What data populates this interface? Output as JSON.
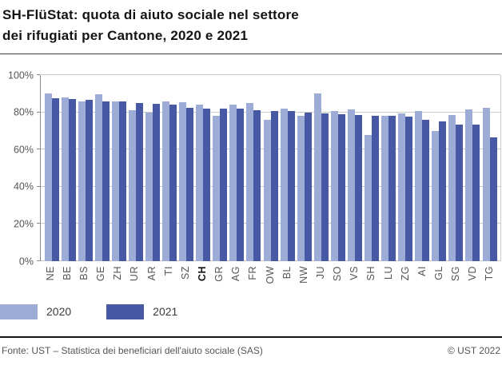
{
  "title": {
    "line1": "SH-FlüStat: quota di aiuto sociale nel settore",
    "line2": "dei rifugiati per Cantone, 2020 e 2021"
  },
  "chart_data": {
    "type": "bar",
    "title": "SH-FlüStat: quota di aiuto sociale nel settore dei rifugiati per Cantone, 2020 e 2021",
    "categories": [
      "NE",
      "BE",
      "BS",
      "GE",
      "ZH",
      "UR",
      "AR",
      "TI",
      "SZ",
      "CH",
      "GR",
      "AG",
      "FR",
      "OW",
      "BL",
      "NW",
      "JU",
      "SO",
      "VS",
      "SH",
      "LU",
      "ZG",
      "AI",
      "GL",
      "SG",
      "VD",
      "TG"
    ],
    "bold_category": "CH",
    "series": [
      {
        "name": "2020",
        "color": "#9dacd7",
        "values": [
          90,
          88,
          86,
          89.5,
          86,
          81,
          80,
          86,
          85.5,
          84,
          78,
          84,
          85,
          76,
          82,
          78,
          90,
          80.5,
          81.5,
          68,
          78,
          79.5,
          80.5,
          70,
          78.5,
          81.5,
          82.5
        ]
      },
      {
        "name": "2021",
        "color": "#4759a4",
        "values": [
          87.5,
          87,
          86.5,
          86,
          86,
          85,
          84.5,
          84,
          82.5,
          82,
          82,
          82,
          81,
          80.5,
          80.5,
          80,
          79.5,
          79,
          78.5,
          78,
          78,
          77.5,
          76,
          75,
          73.5,
          73.5,
          66.5
        ]
      }
    ],
    "xlabel": "",
    "ylabel": "",
    "ylim": [
      0,
      100
    ],
    "yticks": [
      0,
      20,
      40,
      60,
      80,
      100
    ],
    "ytick_suffix": "%",
    "grid": "horizontal",
    "legend_position": "bottom-left"
  },
  "footer": {
    "source": "Fonte: UST – Statistica dei beneficiari dell'aiuto sociale (SAS)",
    "copyright": "© UST 2022"
  }
}
